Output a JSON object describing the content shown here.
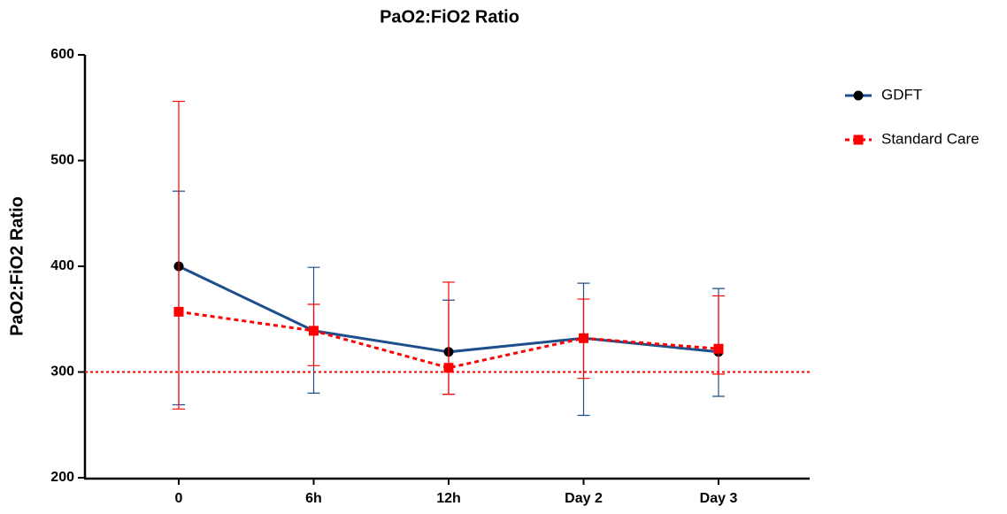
{
  "chart_data": {
    "type": "line",
    "title": "PaO2:FiO2 Ratio",
    "y_label": "PaO2:FiO2 Ratio",
    "categories": [
      "0",
      "6h",
      "12h",
      "Day 2",
      "Day 3"
    ],
    "series": [
      {
        "name": "GDFT",
        "color": "#1f4e8c",
        "marker": "circle",
        "marker_color": "#000000",
        "dash": "solid",
        "values": [
          400,
          339,
          319,
          332,
          319
        ],
        "error_lower": [
          269,
          280,
          279,
          259,
          277
        ],
        "error_upper": [
          471,
          399,
          368,
          384,
          379
        ]
      },
      {
        "name": "Standard Care",
        "color": "#ff0000",
        "marker": "square",
        "marker_color": "#ff0000",
        "dash": "dotted",
        "values": [
          357,
          339,
          304,
          332,
          322
        ],
        "error_lower": [
          265,
          306,
          279,
          294,
          298
        ],
        "error_upper": [
          556,
          364,
          385,
          369,
          372
        ]
      }
    ],
    "reference_line": {
      "value": 300,
      "color": "#ff0000"
    },
    "ylim": [
      200,
      600
    ],
    "yticks": [
      200,
      300,
      400,
      500,
      600
    ],
    "grid": false,
    "legend": "right"
  }
}
